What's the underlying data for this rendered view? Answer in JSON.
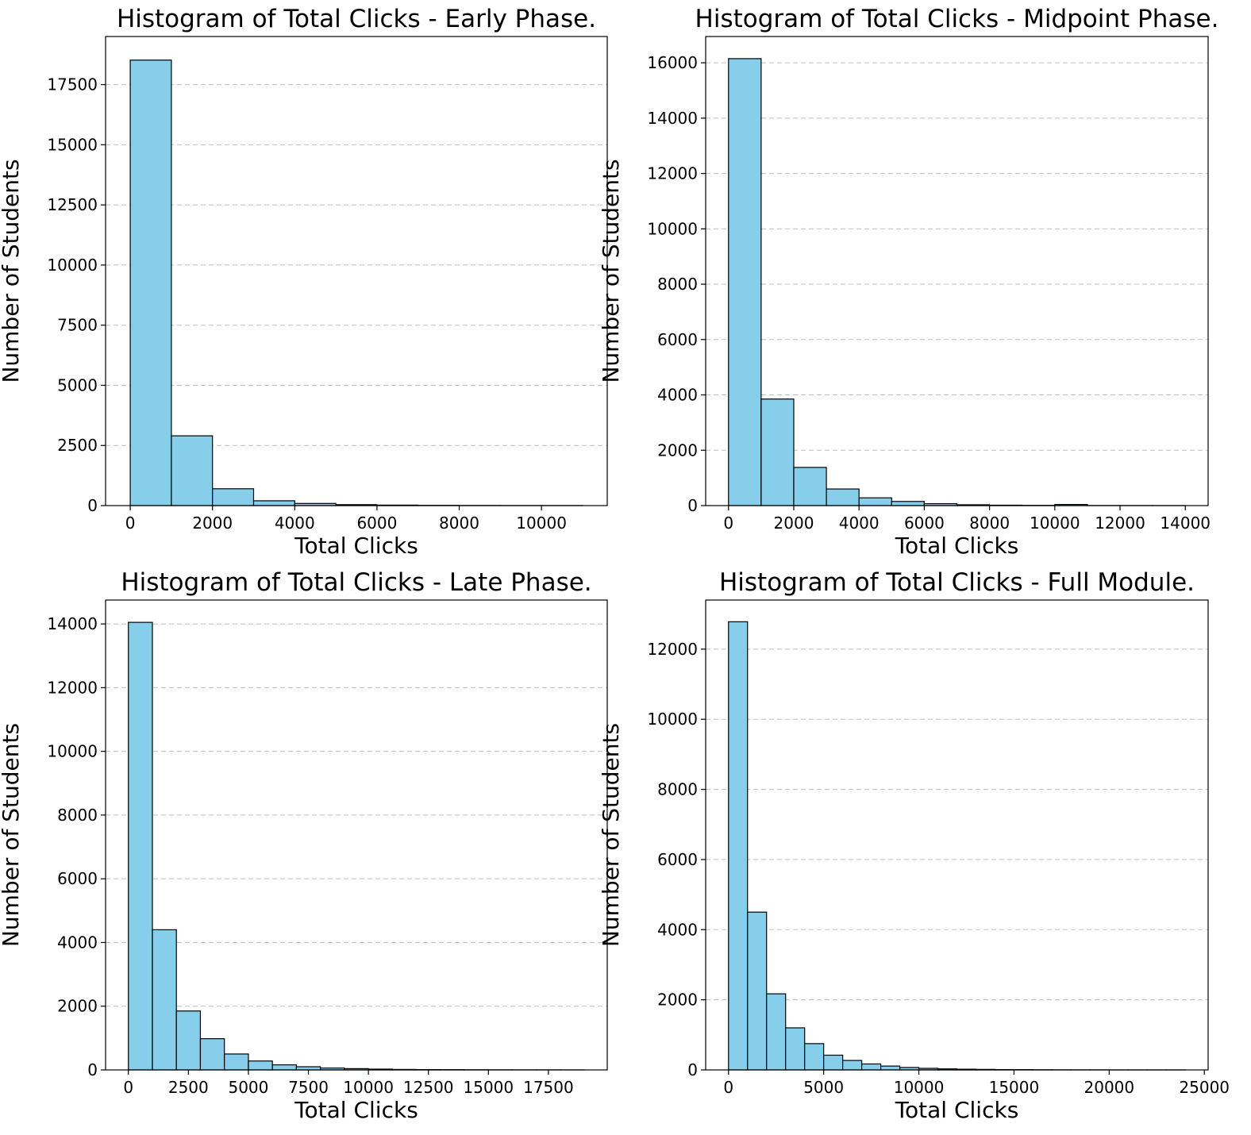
{
  "colors": {
    "bar_fill": "#87ceeb",
    "bar_edge": "#000000",
    "grid": "#bfbfbf"
  },
  "chart_data": [
    {
      "type": "bar",
      "title": "Histogram of Total Clicks - Early Phase.",
      "xlabel": "Total Clicks",
      "ylabel": "Number of Students",
      "bin_width": 1000,
      "bins": [
        0,
        1000,
        2000,
        3000,
        4000,
        5000,
        6000,
        7000,
        8000,
        9000,
        10000
      ],
      "values": [
        18520,
        2900,
        700,
        200,
        90,
        40,
        20,
        10,
        5,
        3,
        2
      ],
      "xlim": [
        -600,
        11600
      ],
      "ylim": [
        0,
        19500
      ],
      "xticks": [
        0,
        2000,
        4000,
        6000,
        8000,
        10000
      ],
      "yticks": [
        0,
        2500,
        5000,
        7500,
        10000,
        12500,
        15000,
        17500
      ],
      "grid": "y-dashed"
    },
    {
      "type": "bar",
      "title": "Histogram of Total Clicks - Midpoint Phase.",
      "xlabel": "Total Clicks",
      "ylabel": "Number of Students",
      "bin_width": 1000,
      "bins": [
        0,
        1000,
        2000,
        3000,
        4000,
        5000,
        6000,
        7000,
        8000,
        9000,
        10000,
        11000,
        12000,
        13000
      ],
      "values": [
        16150,
        3850,
        1380,
        600,
        280,
        150,
        70,
        30,
        15,
        8,
        40,
        3,
        2,
        1
      ],
      "xlim": [
        -700,
        14700
      ],
      "ylim": [
        0,
        16950
      ],
      "xticks": [
        0,
        2000,
        4000,
        6000,
        8000,
        10000,
        12000,
        14000
      ],
      "yticks": [
        0,
        2000,
        4000,
        6000,
        8000,
        10000,
        12000,
        14000,
        16000
      ],
      "grid": "y-dashed"
    },
    {
      "type": "bar",
      "title": "Histogram of Total Clicks - Late Phase.",
      "xlabel": "Total Clicks",
      "ylabel": "Number of Students",
      "bin_width": 1000,
      "bins": [
        0,
        1000,
        2000,
        3000,
        4000,
        5000,
        6000,
        7000,
        8000,
        9000,
        10000,
        11000,
        12000,
        13000,
        14000,
        15000,
        16000,
        17000,
        18000
      ],
      "values": [
        14050,
        4400,
        1850,
        980,
        500,
        280,
        160,
        100,
        60,
        40,
        25,
        15,
        10,
        8,
        5,
        3,
        2,
        2,
        1
      ],
      "xlim": [
        -950,
        19950
      ],
      "ylim": [
        0,
        14750
      ],
      "xticks": [
        0,
        2500,
        5000,
        7500,
        10000,
        12500,
        15000,
        17500
      ],
      "yticks": [
        0,
        2000,
        4000,
        6000,
        8000,
        10000,
        12000,
        14000
      ],
      "grid": "y-dashed"
    },
    {
      "type": "bar",
      "title": "Histogram of Total Clicks - Full Module.",
      "xlabel": "Total Clicks",
      "ylabel": "Number of Students",
      "bin_width": 1000,
      "bins": [
        0,
        1000,
        2000,
        3000,
        4000,
        5000,
        6000,
        7000,
        8000,
        9000,
        10000,
        11000,
        12000,
        13000,
        14000,
        15000,
        16000,
        17000,
        18000,
        19000,
        20000,
        21000,
        22000,
        23000
      ],
      "values": [
        12780,
        4500,
        2170,
        1200,
        750,
        420,
        270,
        170,
        110,
        70,
        45,
        30,
        20,
        15,
        10,
        8,
        5,
        3,
        2,
        2,
        1,
        1,
        1,
        1
      ],
      "xlim": [
        -1200,
        25200
      ],
      "ylim": [
        0,
        13400
      ],
      "xticks": [
        0,
        5000,
        10000,
        15000,
        20000,
        25000
      ],
      "yticks": [
        0,
        2000,
        4000,
        6000,
        8000,
        10000,
        12000
      ],
      "grid": "y-dashed"
    }
  ]
}
